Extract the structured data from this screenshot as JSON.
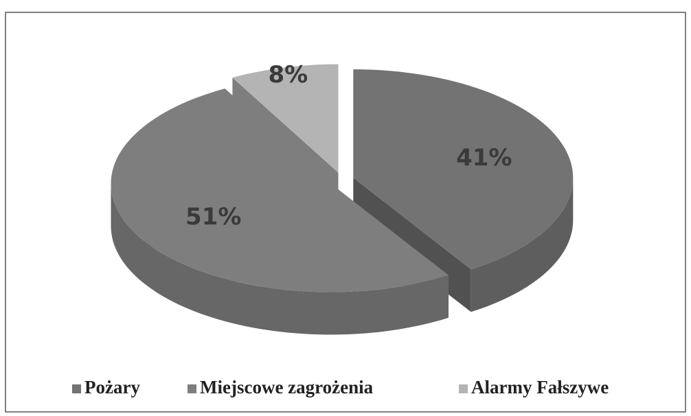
{
  "chart_data": {
    "type": "pie",
    "categories": [
      "Pożary",
      "Miejscowe zagrożenia",
      "Alarmy Fałszywe"
    ],
    "values": [
      41,
      51,
      8
    ],
    "value_labels": [
      "41%",
      "51%",
      "8%"
    ],
    "colors": [
      "#737373",
      "#7e7e7e",
      "#b4b4b4"
    ],
    "legend": "bottom"
  }
}
